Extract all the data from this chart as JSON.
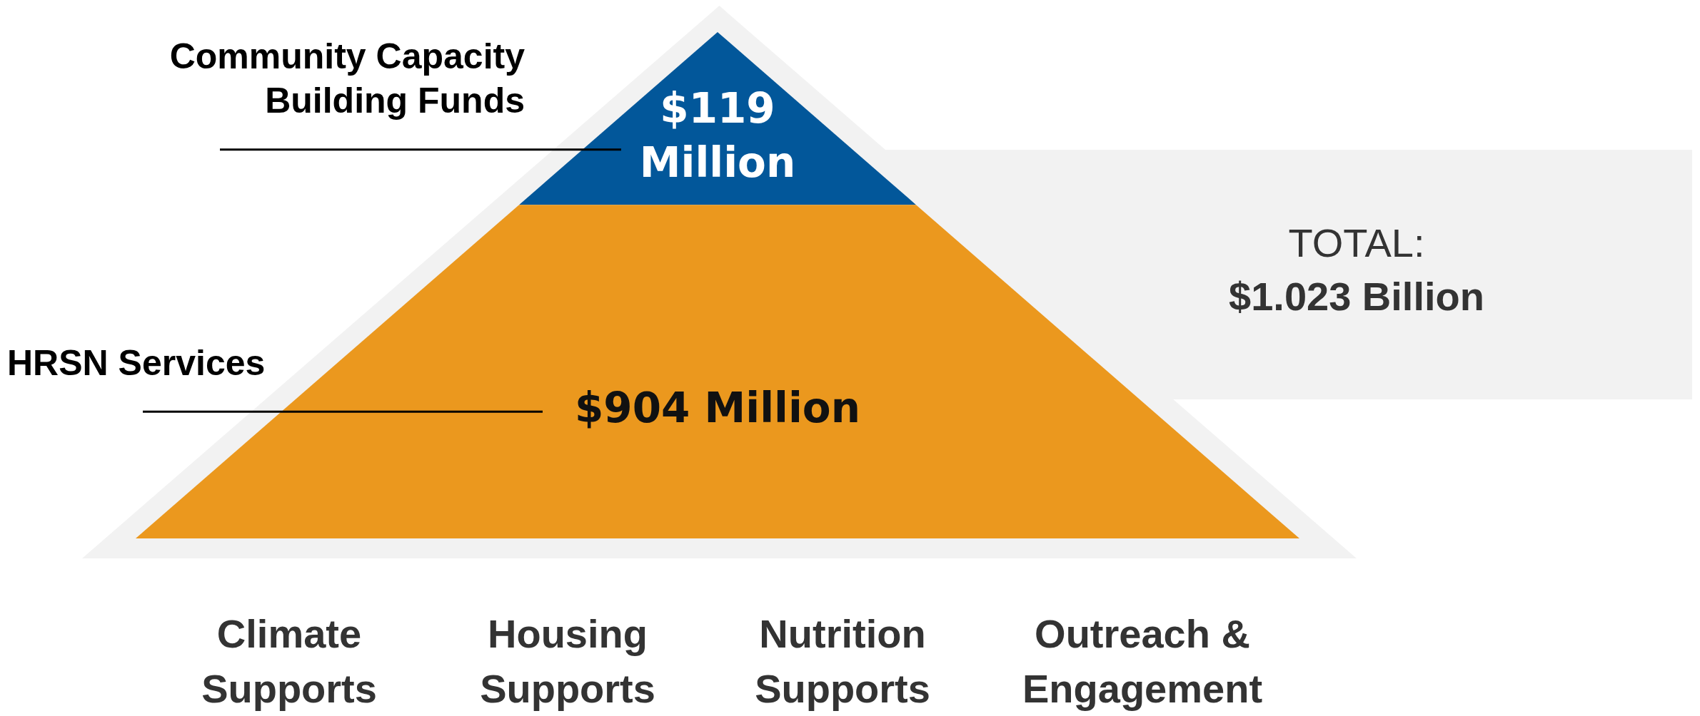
{
  "chart_data": {
    "type": "other",
    "categories": [
      "Community Capacity Building Funds",
      "HRSN Services"
    ],
    "values": [
      119,
      904
    ],
    "value_labels": [
      "$119 Million",
      "$904 Million"
    ],
    "colors": [
      "#02579a",
      "#eb981e"
    ],
    "annotations": [
      "TOTAL:",
      "$1.023 Billion",
      "Climate Supports",
      "Housing Supports",
      "Nutrition Supports",
      "Outreach & Engagement"
    ]
  }
}
